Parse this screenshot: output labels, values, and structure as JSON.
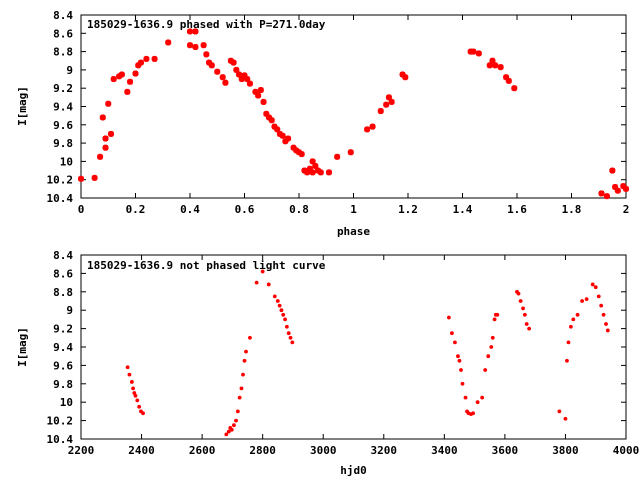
{
  "chart_data": [
    {
      "type": "scatter",
      "title": "185029-1636.9 phased with P=271.0day",
      "xlabel": "phase",
      "ylabel": "I[mag]",
      "xlim": [
        0,
        2
      ],
      "ylim": [
        10.4,
        8.4
      ],
      "y_inverted": true,
      "xticks": [
        "0",
        "0.2",
        "0.4",
        "0.6",
        "0.8",
        "1",
        "1.2",
        "1.4",
        "1.6",
        "1.8",
        "2"
      ],
      "yticks": [
        "8.4",
        "8.6",
        "8.8",
        "9",
        "9.2",
        "9.4",
        "9.6",
        "9.8",
        "10",
        "10.2",
        "10.4"
      ],
      "grid": false,
      "marker": "cross",
      "marker_color": "#ff0000",
      "series": [
        {
          "x": [
            0.0,
            0.05,
            0.07,
            0.08,
            0.09,
            0.09,
            0.1,
            0.11,
            0.12,
            0.14,
            0.15,
            0.17,
            0.18,
            0.2,
            0.21,
            0.22,
            0.24,
            0.27,
            0.32,
            0.4,
            0.4,
            0.42,
            0.42,
            0.45,
            0.46,
            0.47,
            0.48,
            0.5,
            0.52,
            0.53,
            0.55,
            0.56,
            0.57,
            0.58,
            0.59,
            0.6,
            0.61,
            0.62,
            0.64,
            0.65,
            0.66,
            0.67,
            0.68,
            0.69,
            0.7,
            0.71,
            0.72,
            0.73,
            0.74,
            0.75,
            0.76,
            0.78,
            0.79,
            0.8,
            0.81,
            0.82,
            0.83,
            0.84,
            0.85,
            0.85,
            0.86,
            0.87,
            0.88,
            0.91,
            0.94,
            0.99,
            1.05,
            1.07,
            1.1,
            1.12,
            1.13,
            1.14,
            1.18,
            1.19,
            1.43,
            1.44,
            1.46,
            1.5,
            1.51,
            1.52,
            1.54,
            1.56,
            1.57,
            1.59,
            1.91,
            1.93,
            1.95,
            1.96,
            1.97,
            1.99,
            2.0
          ],
          "y": [
            10.19,
            10.18,
            9.95,
            9.52,
            9.85,
            9.75,
            9.37,
            9.7,
            9.1,
            9.07,
            9.05,
            9.24,
            9.13,
            9.04,
            8.95,
            8.92,
            8.88,
            8.88,
            8.7,
            8.58,
            8.73,
            8.58,
            8.75,
            8.73,
            8.83,
            8.92,
            8.95,
            9.02,
            9.08,
            9.14,
            8.9,
            8.92,
            9.0,
            9.05,
            9.1,
            9.06,
            9.1,
            9.15,
            9.24,
            9.28,
            9.22,
            9.35,
            9.48,
            9.52,
            9.55,
            9.62,
            9.65,
            9.7,
            9.72,
            9.78,
            9.75,
            9.85,
            9.88,
            9.9,
            9.92,
            10.1,
            10.12,
            10.08,
            10.0,
            10.12,
            10.05,
            10.1,
            10.12,
            10.12,
            9.95,
            9.9,
            9.65,
            9.62,
            9.45,
            9.38,
            9.3,
            9.35,
            9.05,
            9.08,
            8.8,
            8.8,
            8.82,
            8.95,
            8.9,
            8.95,
            8.97,
            9.08,
            9.12,
            9.2,
            10.35,
            10.38,
            10.1,
            10.28,
            10.32,
            10.27,
            10.3
          ]
        }
      ]
    },
    {
      "type": "scatter",
      "title": "185029-1636.9 not phased light curve",
      "xlabel": "hjd0",
      "ylabel": "I[mag]",
      "xlim": [
        2200,
        4000
      ],
      "ylim": [
        10.4,
        8.4
      ],
      "y_inverted": true,
      "xticks": [
        "2200",
        "2400",
        "2600",
        "2800",
        "3000",
        "3200",
        "3400",
        "3600",
        "3800",
        "4000"
      ],
      "yticks": [
        "8.4",
        "8.6",
        "8.8",
        "9",
        "9.2",
        "9.4",
        "9.6",
        "9.8",
        "10",
        "10.2",
        "10.4"
      ],
      "grid": false,
      "marker": "dot",
      "marker_color": "#ff0000",
      "series": [
        {
          "x": [
            2354,
            2360,
            2368,
            2372,
            2376,
            2380,
            2386,
            2392,
            2398,
            2405,
            2680,
            2688,
            2693,
            2698,
            2705,
            2712,
            2718,
            2724,
            2730,
            2735,
            2740,
            2745,
            2758,
            2780,
            2800,
            2820,
            2840,
            2850,
            2856,
            2862,
            2868,
            2874,
            2880,
            2886,
            2892,
            2898,
            3415,
            3425,
            3435,
            3445,
            3450,
            3455,
            3460,
            3470,
            3475,
            3480,
            3488,
            3495,
            3510,
            3525,
            3535,
            3545,
            3555,
            3560,
            3566,
            3570,
            3575,
            3640,
            3645,
            3652,
            3660,
            3666,
            3672,
            3680,
            3780,
            3800,
            3805,
            3810,
            3818,
            3826,
            3840,
            3855,
            3870,
            3890,
            3900,
            3910,
            3918,
            3926,
            3934,
            3940
          ],
          "y": [
            9.62,
            9.7,
            9.78,
            9.85,
            9.9,
            9.93,
            9.98,
            10.05,
            10.1,
            10.12,
            10.35,
            10.32,
            10.28,
            10.3,
            10.25,
            10.2,
            10.1,
            9.95,
            9.85,
            9.7,
            9.55,
            9.45,
            9.3,
            8.7,
            8.58,
            8.72,
            8.85,
            8.9,
            8.95,
            9.0,
            9.05,
            9.1,
            9.18,
            9.25,
            9.3,
            9.35,
            9.08,
            9.25,
            9.35,
            9.5,
            9.55,
            9.65,
            9.8,
            9.95,
            10.1,
            10.12,
            10.13,
            10.12,
            10.0,
            9.95,
            9.65,
            9.5,
            9.4,
            9.3,
            9.1,
            9.05,
            9.05,
            8.8,
            8.82,
            8.9,
            8.98,
            9.05,
            9.15,
            9.2,
            10.1,
            10.18,
            9.55,
            9.35,
            9.18,
            9.1,
            9.05,
            8.9,
            8.88,
            8.72,
            8.75,
            8.85,
            8.95,
            9.05,
            9.15,
            9.22
          ]
        }
      ]
    }
  ]
}
